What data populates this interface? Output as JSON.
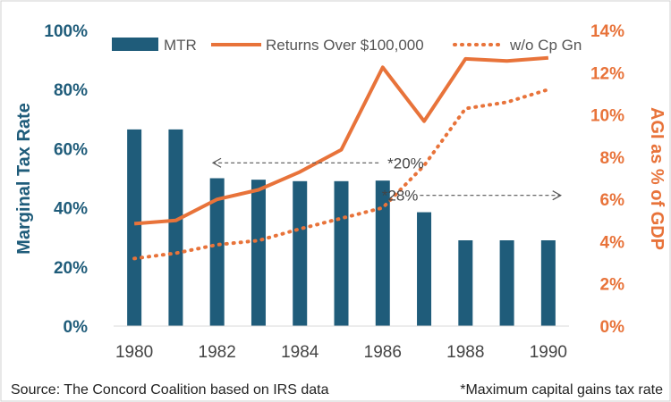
{
  "chart_data": {
    "type": "bar+line",
    "x": [
      1980,
      1981,
      1982,
      1983,
      1984,
      1985,
      1986,
      1987,
      1988,
      1989,
      1990
    ],
    "xticks": [
      "1980",
      "1982",
      "1984",
      "1986",
      "1988",
      "1990"
    ],
    "ylabel_left": "Marginal Tax Rate",
    "ylabel_right": "AGI as % of GDP",
    "ylim_left": [
      0,
      100
    ],
    "ylim_right": [
      0,
      14
    ],
    "yticks_left": [
      "0%",
      "20%",
      "40%",
      "60%",
      "80%",
      "100%"
    ],
    "yticks_right": [
      "0%",
      "2%",
      "4%",
      "6%",
      "8%",
      "10%",
      "12%",
      "14%"
    ],
    "series": [
      {
        "name": "MTR",
        "kind": "bar",
        "axis": "left",
        "color": "#1F5C7A",
        "values": [
          66.5,
          66.5,
          50,
          49.5,
          49,
          49,
          49.2,
          38.5,
          29,
          29,
          29
        ]
      },
      {
        "name": "Returns Over $100,000",
        "kind": "line",
        "axis": "right",
        "color": "#E8733A",
        "values": [
          4.85,
          5.0,
          6.0,
          6.45,
          7.3,
          8.35,
          12.25,
          9.7,
          12.65,
          12.55,
          12.7
        ]
      },
      {
        "name": "w/o Cp Gn",
        "kind": "dotted-line",
        "axis": "right",
        "color": "#E8733A",
        "values": [
          3.2,
          3.45,
          3.85,
          4.05,
          4.6,
          5.1,
          5.6,
          7.6,
          10.3,
          10.6,
          11.2
        ]
      }
    ],
    "annotations": [
      {
        "text": "*20%",
        "arrow": "left",
        "from_x": 1985.9,
        "to_x": 1981.9,
        "y": 55.2
      },
      {
        "text": "*28%",
        "arrow": "right",
        "from_x": 1986.9,
        "to_x": 1990.3,
        "y": 44.2
      }
    ],
    "legend_position": "top"
  },
  "footer": {
    "source": "Source: The Concord Coalition based on IRS data",
    "note": "*Maximum capital gains tax rate"
  }
}
